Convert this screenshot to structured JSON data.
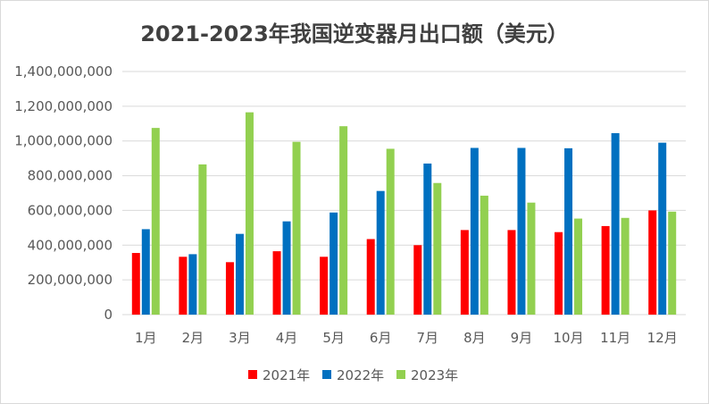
{
  "chart_data": {
    "type": "bar",
    "title": "2021-2023年我国逆变器月出口额（美元）",
    "xlabel": "",
    "ylabel": "",
    "categories": [
      "1月",
      "2月",
      "3月",
      "4月",
      "5月",
      "6月",
      "7月",
      "8月",
      "9月",
      "10月",
      "11月",
      "12月"
    ],
    "series": [
      {
        "name": "2021年",
        "color": "#ff0000",
        "values": [
          355000000,
          333000000,
          302000000,
          365000000,
          333000000,
          435000000,
          400000000,
          487000000,
          487000000,
          475000000,
          510000000,
          600000000
        ]
      },
      {
        "name": "2022年",
        "color": "#0070c0",
        "values": [
          492000000,
          348000000,
          465000000,
          537000000,
          588000000,
          712000000,
          870000000,
          960000000,
          960000000,
          958000000,
          1045000000,
          990000000
        ]
      },
      {
        "name": "2023年",
        "color": "#92d050",
        "values": [
          1075000000,
          865000000,
          1165000000,
          995000000,
          1085000000,
          955000000,
          758000000,
          685000000,
          645000000,
          553000000,
          557000000,
          593000000
        ]
      }
    ],
    "ylim": [
      0,
      1400000000
    ],
    "yticks": [
      "0",
      "200,000,000",
      "400,000,000",
      "600,000,000",
      "800,000,000",
      "1,000,000,000",
      "1,200,000,000",
      "1,400,000,000"
    ],
    "grid": true,
    "legend_position": "bottom"
  }
}
